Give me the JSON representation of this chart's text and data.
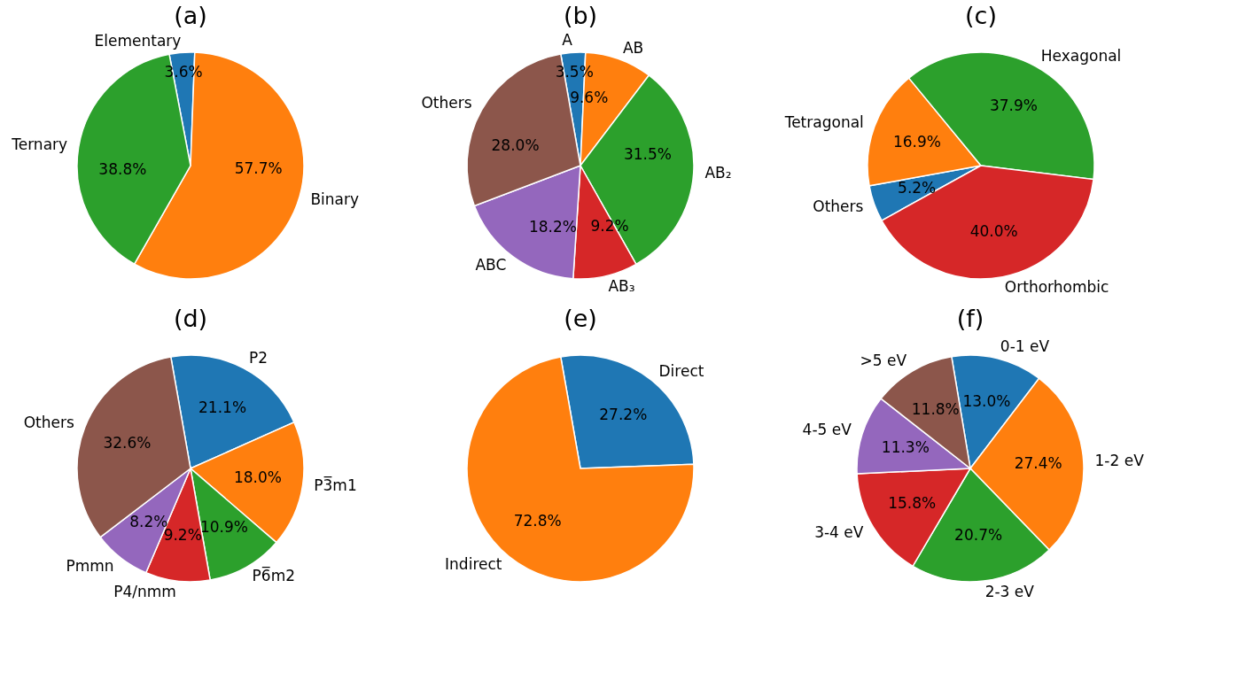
{
  "chart_data": [
    {
      "type": "pie",
      "title": "(a)",
      "categories": [
        "Elementary",
        "Binary",
        "Ternary"
      ],
      "values": [
        3.6,
        57.7,
        38.8
      ],
      "colors": [
        "#1f77b4",
        "#ff7f0e",
        "#2ca02c"
      ],
      "value_labels": [
        "3.6%",
        "57.7%",
        "38.8%"
      ]
    },
    {
      "type": "pie",
      "title": "(b)",
      "categories": [
        "A",
        "AB",
        "AB₂",
        "AB₃",
        "ABC",
        "Others"
      ],
      "values": [
        3.5,
        9.6,
        31.5,
        9.2,
        18.2,
        28.0
      ],
      "colors": [
        "#1f77b4",
        "#ff7f0e",
        "#2ca02c",
        "#d62728",
        "#9467bd",
        "#8c564b"
      ],
      "value_labels": [
        "3.5%",
        "9.6%",
        "31.5%",
        "9.2%",
        "18.2%",
        "28.0%"
      ]
    },
    {
      "type": "pie",
      "title": "(c)",
      "categories": [
        "Others",
        "Tetragonal",
        "Hexagonal",
        "Orthorhombic"
      ],
      "values": [
        5.2,
        16.9,
        37.9,
        40.0
      ],
      "colors": [
        "#1f77b4",
        "#ff7f0e",
        "#2ca02c",
        "#d62728"
      ],
      "value_labels": [
        "5.2%",
        "16.9%",
        "37.9%",
        "40.0%"
      ]
    },
    {
      "type": "pie",
      "title": "(d)",
      "categories": [
        "P2",
        "P3̅m1",
        "P6̅m2",
        "P4/nmm",
        "Pmmn",
        "Others"
      ],
      "values": [
        21.1,
        18.0,
        10.9,
        9.2,
        8.2,
        32.6
      ],
      "colors": [
        "#1f77b4",
        "#ff7f0e",
        "#2ca02c",
        "#d62728",
        "#9467bd",
        "#8c564b"
      ],
      "value_labels": [
        "21.1%",
        "18.0%",
        "10.9%",
        "9.2%",
        "8.2%",
        "32.6%"
      ]
    },
    {
      "type": "pie",
      "title": "(e)",
      "categories": [
        "Direct",
        "Indirect"
      ],
      "values": [
        27.2,
        72.8
      ],
      "colors": [
        "#1f77b4",
        "#ff7f0e"
      ],
      "value_labels": [
        "27.2%",
        "72.8%"
      ]
    },
    {
      "type": "pie",
      "title": "(f)",
      "categories": [
        "0-1 eV",
        "1-2 eV",
        "2-3 eV",
        "3-4 eV",
        "4-5 eV",
        ">5 eV"
      ],
      "values": [
        13.0,
        27.4,
        20.7,
        15.8,
        11.3,
        11.8
      ],
      "colors": [
        "#1f77b4",
        "#ff7f0e",
        "#2ca02c",
        "#d62728",
        "#9467bd",
        "#8c564b"
      ],
      "value_labels": [
        "13.0%",
        "27.4%",
        "20.7%",
        "15.8%",
        "11.3%",
        "11.8%"
      ]
    }
  ]
}
